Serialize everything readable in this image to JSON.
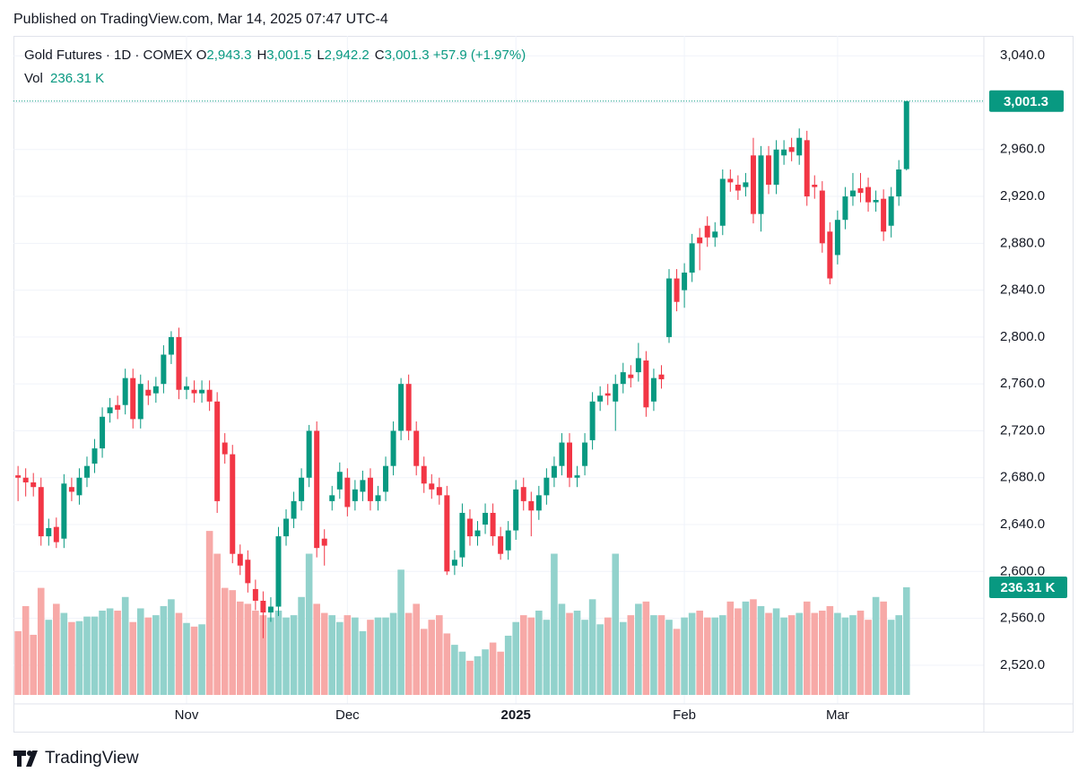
{
  "header": {
    "published": "Published on TradingView.com, Mar 14, 2025 07:47 UTC-4"
  },
  "footer": {
    "brand": "TradingView"
  },
  "chart_data": {
    "type": "candlestick",
    "title": "Gold Futures · 1D · COMEX",
    "ohlc_legend": [
      {
        "label": "O",
        "value": "2,943.3"
      },
      {
        "label": "H",
        "value": "3,001.5"
      },
      {
        "label": "L",
        "value": "2,942.2"
      },
      {
        "label": "C",
        "value": "3,001.3"
      }
    ],
    "change": "+57.9 (+1.97%)",
    "volume_name": "Vol",
    "volume_value": "236.31 K",
    "last_price_label": "3,001.3",
    "last_volume_label": "236.31 K",
    "up_color": "#089981",
    "down_color": "#f23645",
    "volume_up_color": "#92d2cc",
    "volume_down_color": "#f7a9a7",
    "grid": true,
    "xlim": [
      -0.6,
      126.1
    ],
    "xticks": [
      {
        "value": 22,
        "label": "Nov"
      },
      {
        "value": 43,
        "label": "Dec"
      },
      {
        "value": 65,
        "label": "2025"
      },
      {
        "value": 87,
        "label": "Feb"
      },
      {
        "value": 107,
        "label": "Mar"
      }
    ],
    "ylim": [
      2487,
      3057
    ],
    "yticks": [
      {
        "value": 2520,
        "label": "2,520.0"
      },
      {
        "value": 2560,
        "label": "2,560.0"
      },
      {
        "value": 2600,
        "label": "2,600.0"
      },
      {
        "value": 2640,
        "label": "2,640.0"
      },
      {
        "value": 2680,
        "label": "2,680.0"
      },
      {
        "value": 2720,
        "label": "2,720.0"
      },
      {
        "value": 2760,
        "label": "2,760.0"
      },
      {
        "value": 2800,
        "label": "2,800.0"
      },
      {
        "value": 2840,
        "label": "2,840.0"
      },
      {
        "value": 2880,
        "label": "2,880.0"
      },
      {
        "value": 2920,
        "label": "2,920.0"
      },
      {
        "value": 2960,
        "label": "2,960.0"
      },
      {
        "value": 3000,
        "label": "3,000.0"
      },
      {
        "value": 3040,
        "label": "3,040.0"
      }
    ],
    "open": [
      2682,
      2680,
      2676,
      2672,
      2630,
      2638,
      2628,
      2672,
      2665,
      2680,
      2692,
      2705,
      2735,
      2742,
      2742,
      2765,
      2730,
      2755,
      2752,
      2760,
      2785,
      2800,
      2755,
      2755,
      2752,
      2755,
      2745,
      2710,
      2700,
      2615,
      2610,
      2585,
      2575,
      2565,
      2570,
      2630,
      2645,
      2660,
      2680,
      2720,
      2628,
      2660,
      2670,
      2680,
      2660,
      2668,
      2680,
      2660,
      2668,
      2690,
      2720,
      2760,
      2720,
      2690,
      2675,
      2672,
      2665,
      2605,
      2612,
      2645,
      2630,
      2640,
      2650,
      2630,
      2618,
      2635,
      2672,
      2660,
      2652,
      2665,
      2680,
      2690,
      2710,
      2680,
      2690,
      2712,
      2745,
      2752,
      2745,
      2760,
      2768,
      2770,
      2780,
      2745,
      2768,
      2800,
      2850,
      2840,
      2855,
      2885,
      2895,
      2885,
      2895,
      2935,
      2930,
      2928,
      2955,
      2905,
      2955,
      2930,
      2955,
      2962,
      2955,
      2968,
      2930,
      2925,
      2890,
      2870,
      2900,
      2920,
      2927,
      2928,
      2915,
      2918,
      2895,
      2920,
      2943.3
    ],
    "high": [
      2690,
      2688,
      2684,
      2680,
      2645,
      2646,
      2683,
      2680,
      2688,
      2698,
      2713,
      2740,
      2748,
      2750,
      2773,
      2773,
      2768,
      2763,
      2766,
      2793,
      2805,
      2808,
      2766,
      2763,
      2763,
      2763,
      2753,
      2718,
      2708,
      2623,
      2618,
      2593,
      2583,
      2578,
      2638,
      2653,
      2668,
      2688,
      2725,
      2728,
      2636,
      2673,
      2693,
      2688,
      2678,
      2686,
      2688,
      2673,
      2698,
      2728,
      2765,
      2768,
      2728,
      2698,
      2683,
      2680,
      2673,
      2618,
      2658,
      2653,
      2643,
      2658,
      2658,
      2638,
      2643,
      2678,
      2680,
      2668,
      2673,
      2688,
      2698,
      2718,
      2718,
      2690,
      2718,
      2753,
      2758,
      2760,
      2768,
      2778,
      2776,
      2795,
      2788,
      2773,
      2776,
      2858,
      2858,
      2863,
      2888,
      2893,
      2903,
      2898,
      2943,
      2943,
      2938,
      2940,
      2970,
      2963,
      2963,
      2968,
      2968,
      2970,
      2978,
      2976,
      2938,
      2933,
      2898,
      2908,
      2928,
      2940,
      2940,
      2936,
      2925,
      2926,
      2928,
      2951,
      3001.5
    ],
    "low": [
      2660,
      2664,
      2664,
      2622,
      2622,
      2620,
      2620,
      2660,
      2657,
      2672,
      2684,
      2697,
      2727,
      2730,
      2734,
      2722,
      2722,
      2742,
      2744,
      2752,
      2777,
      2747,
      2747,
      2744,
      2744,
      2737,
      2650,
      2692,
      2607,
      2597,
      2582,
      2567,
      2543,
      2557,
      2562,
      2622,
      2637,
      2652,
      2672,
      2612,
      2605,
      2652,
      2662,
      2647,
      2652,
      2660,
      2652,
      2652,
      2660,
      2682,
      2712,
      2712,
      2682,
      2667,
      2662,
      2657,
      2597,
      2597,
      2604,
      2622,
      2622,
      2632,
      2622,
      2610,
      2610,
      2627,
      2652,
      2630,
      2644,
      2657,
      2672,
      2682,
      2672,
      2672,
      2682,
      2704,
      2737,
      2742,
      2720,
      2752,
      2757,
      2762,
      2732,
      2737,
      2756,
      2795,
      2822,
      2825,
      2847,
      2857,
      2877,
      2877,
      2887,
      2924,
      2917,
      2920,
      2897,
      2890,
      2922,
      2922,
      2947,
      2950,
      2947,
      2912,
      2918,
      2872,
      2845,
      2862,
      2892,
      2912,
      2915,
      2907,
      2907,
      2882,
      2885,
      2912,
      2942.2
    ],
    "close": [
      2680,
      2676,
      2672,
      2630,
      2637,
      2625,
      2675,
      2668,
      2680,
      2690,
      2705,
      2732,
      2740,
      2738,
      2765,
      2730,
      2760,
      2750,
      2758,
      2785,
      2800,
      2755,
      2758,
      2752,
      2755,
      2745,
      2660,
      2700,
      2615,
      2605,
      2590,
      2575,
      2565,
      2570,
      2630,
      2645,
      2660,
      2680,
      2720,
      2620,
      2622,
      2665,
      2685,
      2655,
      2670,
      2678,
      2660,
      2665,
      2690,
      2720,
      2760,
      2720,
      2690,
      2675,
      2670,
      2665,
      2600,
      2610,
      2650,
      2630,
      2635,
      2650,
      2630,
      2615,
      2635,
      2670,
      2660,
      2652,
      2665,
      2680,
      2690,
      2710,
      2680,
      2682,
      2710,
      2745,
      2750,
      2750,
      2760,
      2770,
      2765,
      2782,
      2740,
      2765,
      2764,
      2850,
      2830,
      2855,
      2880,
      2880,
      2885,
      2890,
      2935,
      2932,
      2925,
      2932,
      2905,
      2955,
      2930,
      2960,
      2960,
      2958,
      2970,
      2920,
      2928,
      2880,
      2850,
      2900,
      2920,
      2925,
      2923,
      2915,
      2917,
      2890,
      2920,
      2943,
      3001.3
    ],
    "volume": [
      140,
      195,
      132,
      235,
      165,
      200,
      180,
      160,
      162,
      172,
      172,
      185,
      190,
      185,
      215,
      160,
      190,
      170,
      175,
      195,
      210,
      180,
      158,
      150,
      155,
      360,
      310,
      235,
      230,
      205,
      200,
      185,
      175,
      170,
      185,
      170,
      175,
      215,
      310,
      200,
      180,
      175,
      160,
      175,
      170,
      140,
      165,
      170,
      170,
      180,
      275,
      180,
      200,
      145,
      165,
      175,
      135,
      110,
      95,
      75,
      85,
      100,
      115,
      95,
      130,
      160,
      175,
      170,
      185,
      165,
      310,
      200,
      180,
      185,
      165,
      210,
      155,
      170,
      310,
      160,
      175,
      200,
      205,
      175,
      175,
      165,
      145,
      170,
      180,
      185,
      170,
      170,
      175,
      205,
      190,
      205,
      210,
      195,
      180,
      190,
      170,
      175,
      180,
      205,
      180,
      185,
      195,
      180,
      170,
      175,
      185,
      165,
      215,
      205,
      165,
      175,
      236.31
    ]
  }
}
